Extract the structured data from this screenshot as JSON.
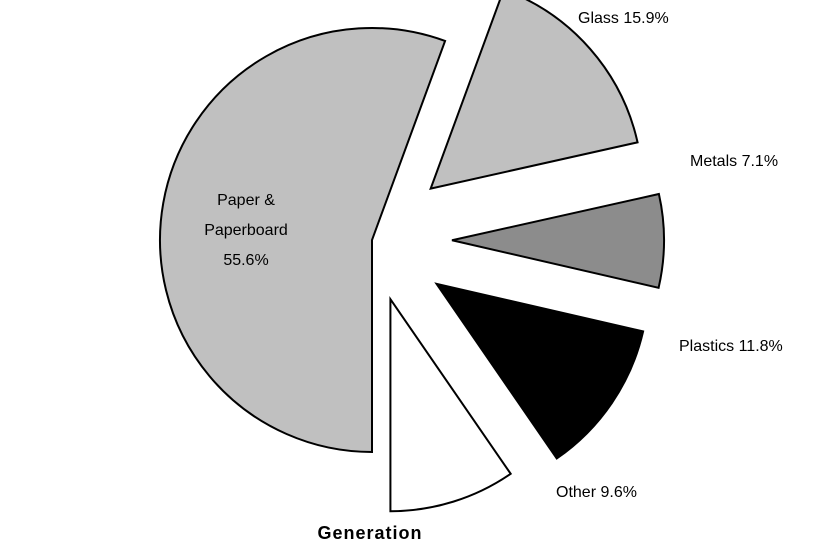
{
  "chart_data": {
    "type": "pie",
    "title": "Generation",
    "categories": [
      "Paper & Paperboard",
      "Glass",
      "Metals",
      "Plastics",
      "Other"
    ],
    "values": [
      55.6,
      15.9,
      7.1,
      11.8,
      9.6
    ],
    "value_labels": [
      "55.6%",
      "15.9%",
      "7.1%",
      "11.8%",
      "9.6%"
    ],
    "colors": [
      "#c0c0c0",
      "#c0c0c0",
      "#8c8c8c",
      "#000000",
      "#ffffff"
    ]
  }
}
